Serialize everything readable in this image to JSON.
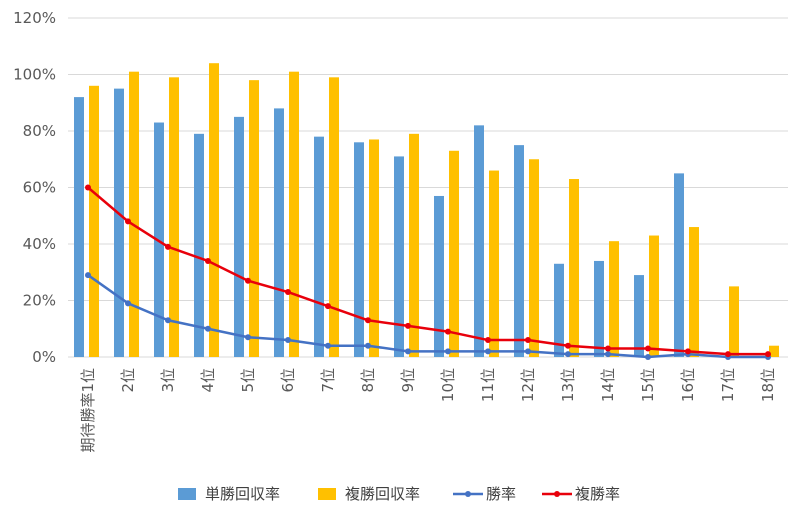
{
  "chart_data": {
    "type": "bar",
    "title": "",
    "xlabel": "",
    "ylabel": "",
    "ylim": [
      0,
      120
    ],
    "y_tick_values": [
      0,
      20,
      40,
      60,
      80,
      100,
      120
    ],
    "y_tick_labels": [
      "0%",
      "20%",
      "40%",
      "60%",
      "80%",
      "100%",
      "120%"
    ],
    "grid": "horizontal",
    "legend_position": "bottom",
    "categories": [
      "期待勝率1位",
      "2位",
      "3位",
      "4位",
      "5位",
      "6位",
      "7位",
      "8位",
      "9位",
      "10位",
      "11位",
      "12位",
      "13位",
      "14位",
      "15位",
      "16位",
      "17位",
      "18位"
    ],
    "series": [
      {
        "name": "単勝回収率",
        "kind": "bar",
        "color": "#5B9BD5",
        "values": [
          92,
          95,
          83,
          79,
          85,
          88,
          78,
          76,
          71,
          57,
          82,
          75,
          33,
          34,
          29,
          65,
          0,
          0
        ]
      },
      {
        "name": "複勝回収率",
        "kind": "bar",
        "color": "#FFC000",
        "values": [
          96,
          101,
          99,
          104,
          98,
          101,
          99,
          77,
          79,
          73,
          66,
          70,
          63,
          41,
          43,
          46,
          25,
          4
        ]
      },
      {
        "name": "勝率",
        "kind": "line",
        "color": "#4472C4",
        "values": [
          29,
          19,
          13,
          10,
          7,
          6,
          4,
          4,
          2,
          2,
          2,
          2,
          1,
          1,
          0,
          1,
          0,
          0
        ]
      },
      {
        "name": "複勝率",
        "kind": "line",
        "color": "#E8000B",
        "values": [
          60,
          48,
          39,
          34,
          27,
          23,
          18,
          13,
          11,
          9,
          6,
          6,
          4,
          3,
          3,
          2,
          1,
          1
        ]
      }
    ]
  },
  "colors": {
    "gridline": "#D9D9D9",
    "axis_text": "#595959"
  }
}
